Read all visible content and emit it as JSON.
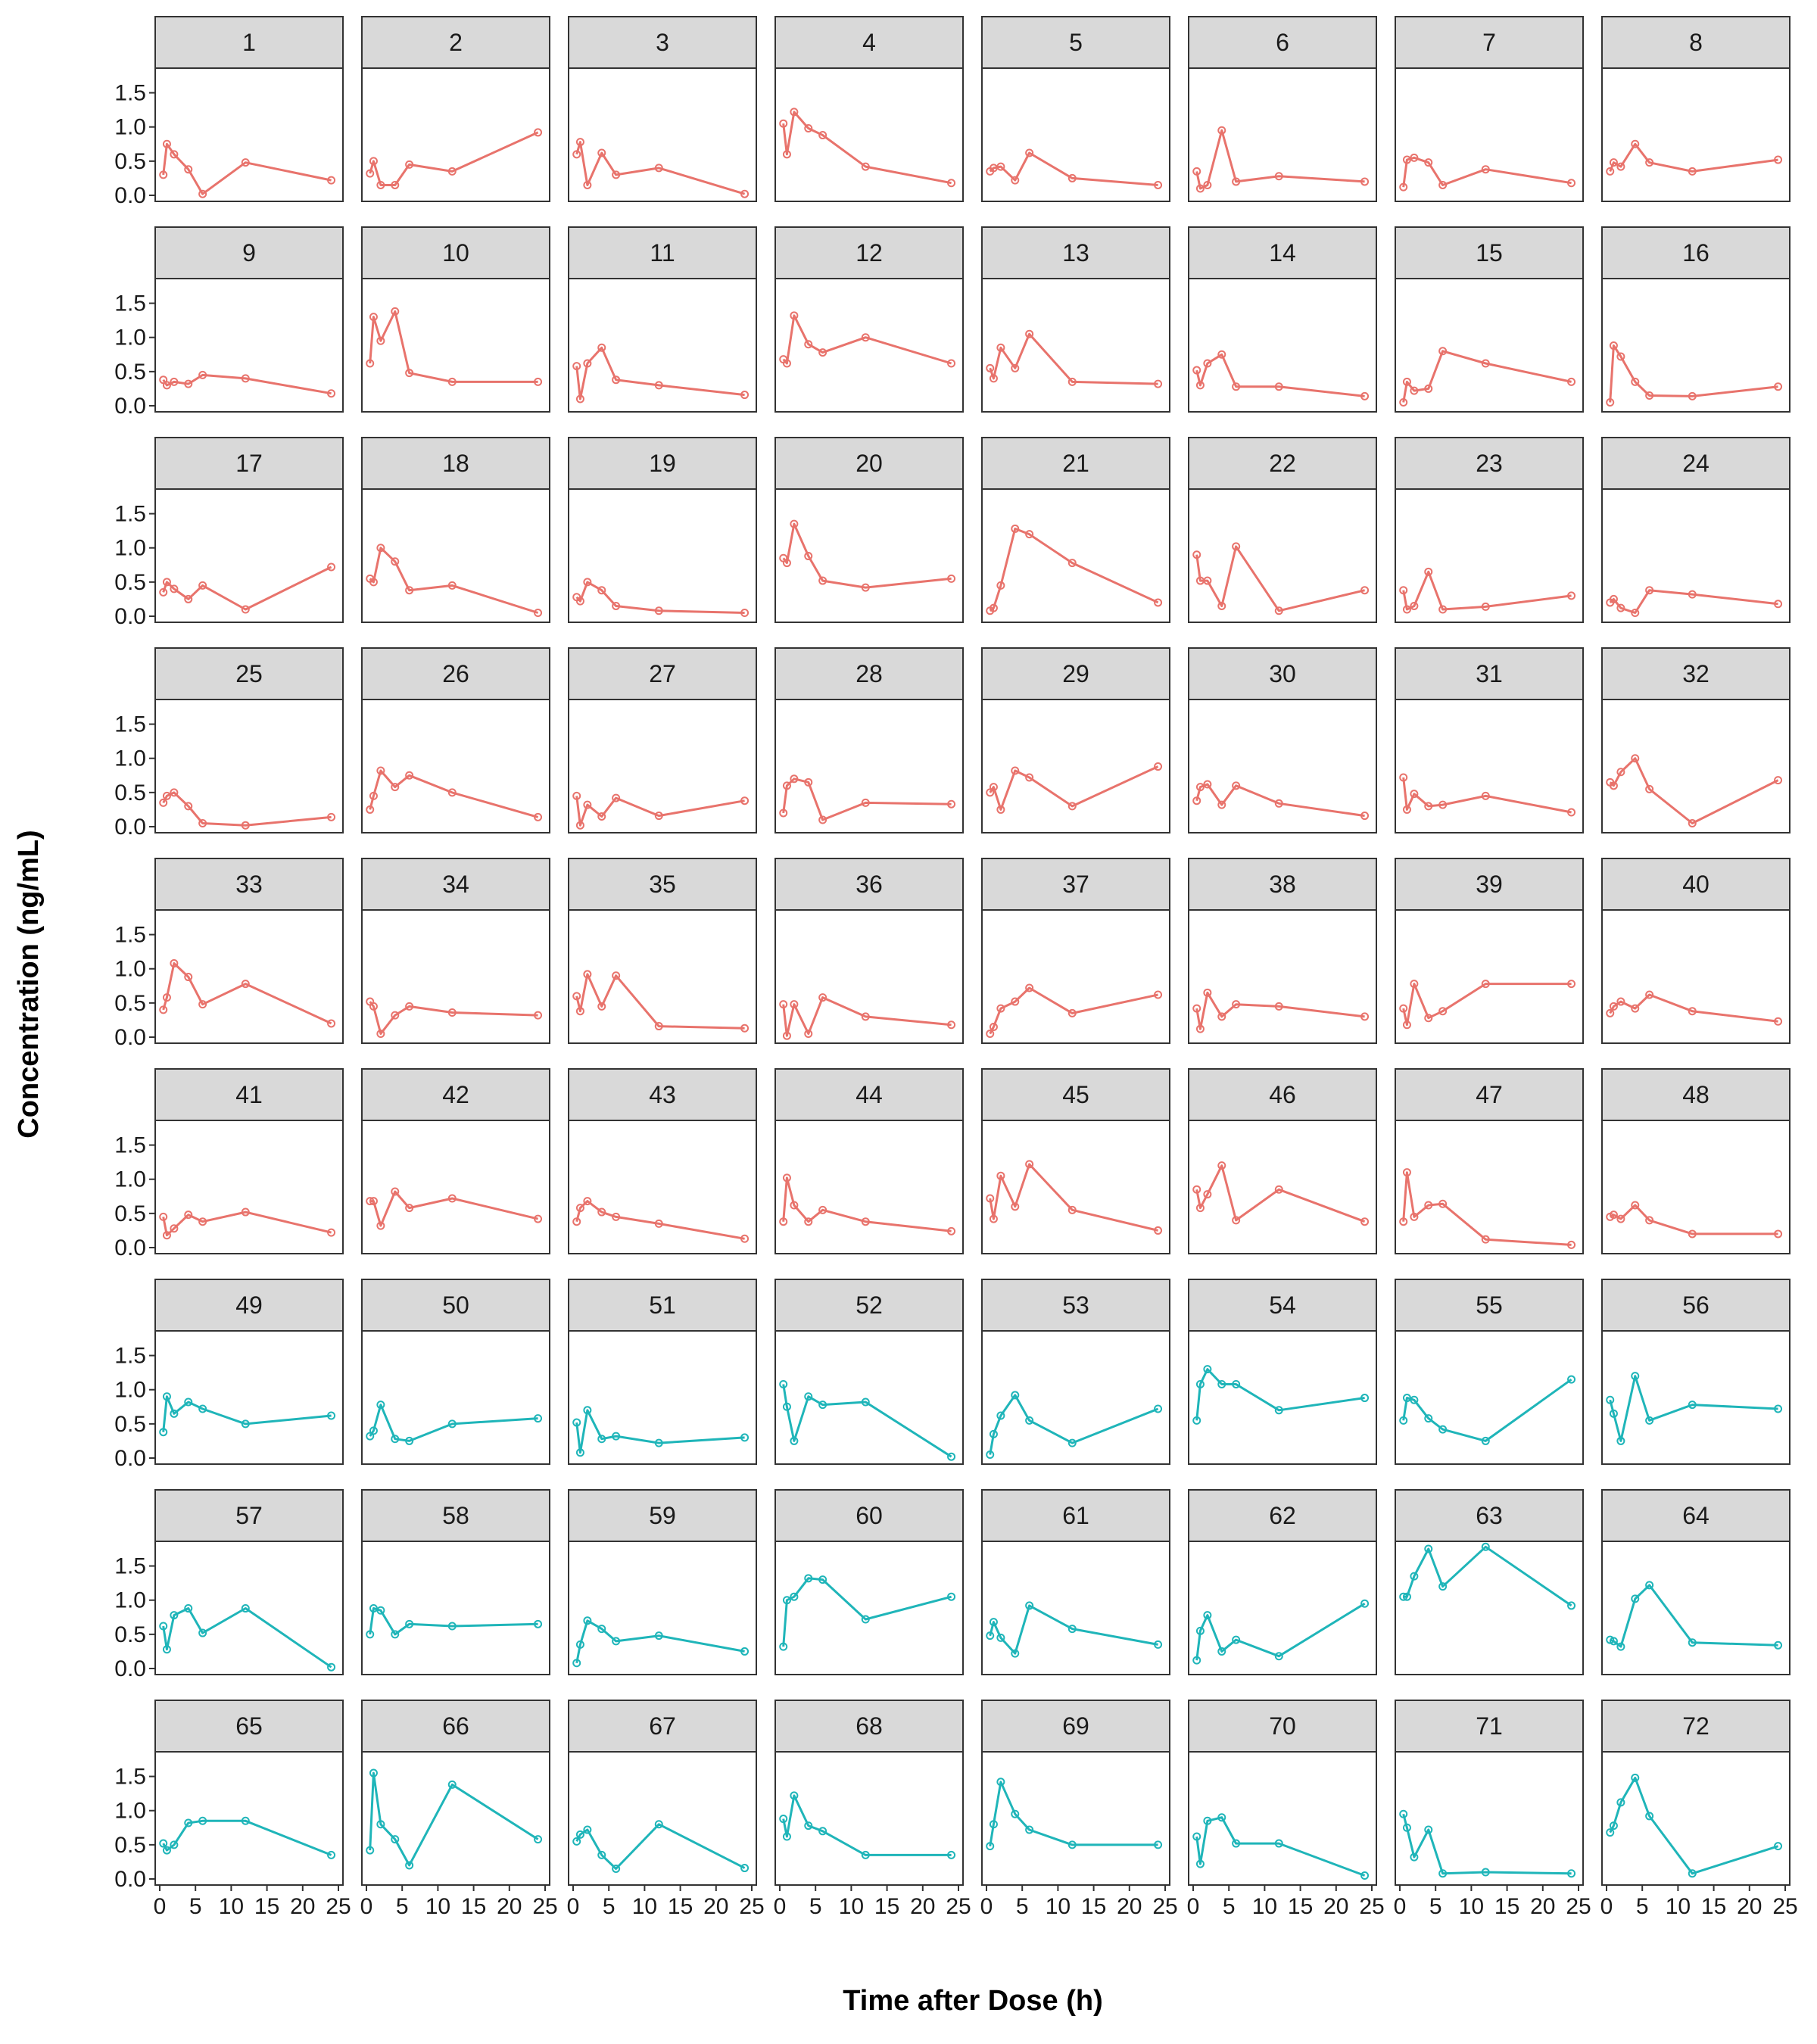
{
  "chart_data": {
    "type": "line",
    "facet": "small-multiples",
    "xlabel": "Time after Dose (h)",
    "ylabel": "Concentration (ng/mL)",
    "xlim": [
      0,
      25
    ],
    "ylim": [
      0,
      1.75
    ],
    "x_ticks": [
      0,
      5,
      10,
      15,
      20,
      25
    ],
    "x_tick_labels": [
      "0",
      "5",
      "10",
      "15",
      "20",
      "25"
    ],
    "y_ticks": [
      0,
      0.5,
      1.0,
      1.5
    ],
    "y_tick_labels": [
      "0.0",
      "0.5",
      "1.0",
      "1.5"
    ],
    "colors": {
      "group_a": "#e8736c",
      "group_b": "#1fb5b9"
    },
    "times": [
      0.5,
      1,
      2,
      4,
      6,
      12,
      24
    ],
    "subjects": [
      {
        "id": "1",
        "group": "a",
        "values": [
          0.3,
          0.75,
          0.6,
          0.38,
          0.02,
          0.48,
          0.22
        ]
      },
      {
        "id": "2",
        "group": "a",
        "values": [
          0.32,
          0.5,
          0.15,
          0.15,
          0.45,
          0.35,
          0.92
        ]
      },
      {
        "id": "3",
        "group": "a",
        "values": [
          0.6,
          0.78,
          0.15,
          0.62,
          0.3,
          0.4,
          0.02
        ]
      },
      {
        "id": "4",
        "group": "a",
        "values": [
          1.05,
          0.6,
          1.22,
          0.98,
          0.88,
          0.42,
          0.18
        ]
      },
      {
        "id": "5",
        "group": "a",
        "values": [
          0.35,
          0.4,
          0.42,
          0.22,
          0.62,
          0.25,
          0.15
        ]
      },
      {
        "id": "6",
        "group": "a",
        "values": [
          0.35,
          0.1,
          0.15,
          0.95,
          0.2,
          0.28,
          0.2
        ]
      },
      {
        "id": "7",
        "group": "a",
        "values": [
          0.12,
          0.52,
          0.55,
          0.48,
          0.15,
          0.38,
          0.18
        ]
      },
      {
        "id": "8",
        "group": "a",
        "values": [
          0.35,
          0.48,
          0.42,
          0.75,
          0.48,
          0.35,
          0.52
        ]
      },
      {
        "id": "9",
        "group": "a",
        "values": [
          0.38,
          0.3,
          0.35,
          0.32,
          0.45,
          0.4,
          0.18
        ]
      },
      {
        "id": "10",
        "group": "a",
        "values": [
          0.62,
          1.3,
          0.95,
          1.38,
          0.48,
          0.35,
          0.35
        ]
      },
      {
        "id": "11",
        "group": "a",
        "values": [
          0.58,
          0.1,
          0.62,
          0.85,
          0.38,
          0.3,
          0.16
        ]
      },
      {
        "id": "12",
        "group": "a",
        "values": [
          0.68,
          0.62,
          1.32,
          0.9,
          0.78,
          1.0,
          0.62
        ]
      },
      {
        "id": "13",
        "group": "a",
        "values": [
          0.55,
          0.4,
          0.85,
          0.55,
          1.05,
          0.35,
          0.32
        ]
      },
      {
        "id": "14",
        "group": "a",
        "values": [
          0.52,
          0.3,
          0.62,
          0.75,
          0.28,
          0.28,
          0.14
        ]
      },
      {
        "id": "15",
        "group": "a",
        "values": [
          0.05,
          0.35,
          0.22,
          0.25,
          0.8,
          0.62,
          0.35
        ]
      },
      {
        "id": "16",
        "group": "a",
        "values": [
          0.05,
          0.88,
          0.72,
          0.35,
          0.15,
          0.14,
          0.28
        ]
      },
      {
        "id": "17",
        "group": "a",
        "values": [
          0.35,
          0.5,
          0.4,
          0.25,
          0.45,
          0.1,
          0.72
        ]
      },
      {
        "id": "18",
        "group": "a",
        "values": [
          0.55,
          0.5,
          1.0,
          0.8,
          0.38,
          0.45,
          0.05
        ]
      },
      {
        "id": "19",
        "group": "a",
        "values": [
          0.28,
          0.22,
          0.5,
          0.38,
          0.15,
          0.08,
          0.05
        ]
      },
      {
        "id": "20",
        "group": "a",
        "values": [
          0.85,
          0.78,
          1.35,
          0.88,
          0.52,
          0.42,
          0.55
        ]
      },
      {
        "id": "21",
        "group": "a",
        "values": [
          0.08,
          0.12,
          0.45,
          1.28,
          1.2,
          0.78,
          0.2
        ]
      },
      {
        "id": "22",
        "group": "a",
        "values": [
          0.9,
          0.52,
          0.52,
          0.15,
          1.02,
          0.08,
          0.38
        ]
      },
      {
        "id": "23",
        "group": "a",
        "values": [
          0.38,
          0.1,
          0.15,
          0.65,
          0.1,
          0.14,
          0.3
        ]
      },
      {
        "id": "24",
        "group": "a",
        "values": [
          0.2,
          0.25,
          0.12,
          0.05,
          0.38,
          0.32,
          0.18
        ]
      },
      {
        "id": "25",
        "group": "a",
        "values": [
          0.35,
          0.45,
          0.5,
          0.3,
          0.05,
          0.02,
          0.14
        ]
      },
      {
        "id": "26",
        "group": "a",
        "values": [
          0.25,
          0.45,
          0.82,
          0.58,
          0.75,
          0.5,
          0.14
        ]
      },
      {
        "id": "27",
        "group": "a",
        "values": [
          0.45,
          0.02,
          0.32,
          0.15,
          0.42,
          0.16,
          0.38
        ]
      },
      {
        "id": "28",
        "group": "a",
        "values": [
          0.2,
          0.6,
          0.7,
          0.65,
          0.1,
          0.35,
          0.33
        ]
      },
      {
        "id": "29",
        "group": "a",
        "values": [
          0.5,
          0.58,
          0.25,
          0.82,
          0.72,
          0.3,
          0.88
        ]
      },
      {
        "id": "30",
        "group": "a",
        "values": [
          0.38,
          0.58,
          0.62,
          0.32,
          0.6,
          0.34,
          0.16
        ]
      },
      {
        "id": "31",
        "group": "a",
        "values": [
          0.72,
          0.25,
          0.48,
          0.3,
          0.32,
          0.45,
          0.21
        ]
      },
      {
        "id": "32",
        "group": "a",
        "values": [
          0.65,
          0.6,
          0.8,
          1.0,
          0.55,
          0.05,
          0.68
        ]
      },
      {
        "id": "33",
        "group": "a",
        "values": [
          0.4,
          0.58,
          1.08,
          0.88,
          0.48,
          0.78,
          0.2
        ]
      },
      {
        "id": "34",
        "group": "a",
        "values": [
          0.52,
          0.45,
          0.05,
          0.32,
          0.45,
          0.36,
          0.32
        ]
      },
      {
        "id": "35",
        "group": "a",
        "values": [
          0.6,
          0.38,
          0.92,
          0.45,
          0.9,
          0.16,
          0.13
        ]
      },
      {
        "id": "36",
        "group": "a",
        "values": [
          0.48,
          0.02,
          0.48,
          0.05,
          0.58,
          0.3,
          0.18
        ]
      },
      {
        "id": "37",
        "group": "a",
        "values": [
          0.05,
          0.15,
          0.42,
          0.52,
          0.72,
          0.35,
          0.62
        ]
      },
      {
        "id": "38",
        "group": "a",
        "values": [
          0.42,
          0.12,
          0.65,
          0.3,
          0.48,
          0.45,
          0.3
        ]
      },
      {
        "id": "39",
        "group": "a",
        "values": [
          0.42,
          0.18,
          0.78,
          0.28,
          0.38,
          0.78,
          0.78
        ]
      },
      {
        "id": "40",
        "group": "a",
        "values": [
          0.35,
          0.45,
          0.52,
          0.42,
          0.62,
          0.38,
          0.23
        ]
      },
      {
        "id": "41",
        "group": "a",
        "values": [
          0.45,
          0.18,
          0.28,
          0.48,
          0.38,
          0.52,
          0.22
        ]
      },
      {
        "id": "42",
        "group": "a",
        "values": [
          0.68,
          0.68,
          0.32,
          0.82,
          0.58,
          0.72,
          0.42
        ]
      },
      {
        "id": "43",
        "group": "a",
        "values": [
          0.38,
          0.58,
          0.68,
          0.52,
          0.45,
          0.35,
          0.13
        ]
      },
      {
        "id": "44",
        "group": "a",
        "values": [
          0.38,
          1.02,
          0.62,
          0.38,
          0.55,
          0.38,
          0.24
        ]
      },
      {
        "id": "45",
        "group": "a",
        "values": [
          0.72,
          0.42,
          1.05,
          0.6,
          1.22,
          0.55,
          0.25
        ]
      },
      {
        "id": "46",
        "group": "a",
        "values": [
          0.85,
          0.58,
          0.78,
          1.2,
          0.4,
          0.85,
          0.38
        ]
      },
      {
        "id": "47",
        "group": "a",
        "values": [
          0.38,
          1.1,
          0.45,
          0.62,
          0.64,
          0.12,
          0.04
        ]
      },
      {
        "id": "48",
        "group": "a",
        "values": [
          0.45,
          0.48,
          0.42,
          0.62,
          0.4,
          0.2,
          0.2
        ]
      },
      {
        "id": "49",
        "group": "b",
        "values": [
          0.38,
          0.9,
          0.65,
          0.82,
          0.72,
          0.5,
          0.62
        ]
      },
      {
        "id": "50",
        "group": "b",
        "values": [
          0.32,
          0.4,
          0.78,
          0.28,
          0.25,
          0.5,
          0.58
        ]
      },
      {
        "id": "51",
        "group": "b",
        "values": [
          0.52,
          0.08,
          0.7,
          0.28,
          0.32,
          0.22,
          0.3
        ]
      },
      {
        "id": "52",
        "group": "b",
        "values": [
          1.08,
          0.75,
          0.25,
          0.9,
          0.78,
          0.82,
          0.02
        ]
      },
      {
        "id": "53",
        "group": "b",
        "values": [
          0.05,
          0.35,
          0.62,
          0.92,
          0.55,
          0.22,
          0.72
        ]
      },
      {
        "id": "54",
        "group": "b",
        "values": [
          0.55,
          1.08,
          1.3,
          1.08,
          1.08,
          0.7,
          0.88
        ]
      },
      {
        "id": "55",
        "group": "b",
        "values": [
          0.55,
          0.88,
          0.85,
          0.58,
          0.42,
          0.25,
          1.15
        ]
      },
      {
        "id": "56",
        "group": "b",
        "values": [
          0.85,
          0.65,
          0.25,
          1.2,
          0.55,
          0.78,
          0.72
        ]
      },
      {
        "id": "57",
        "group": "b",
        "values": [
          0.62,
          0.28,
          0.78,
          0.88,
          0.52,
          0.88,
          0.02
        ]
      },
      {
        "id": "58",
        "group": "b",
        "values": [
          0.5,
          0.88,
          0.85,
          0.5,
          0.65,
          0.62,
          0.65
        ]
      },
      {
        "id": "59",
        "group": "b",
        "values": [
          0.08,
          0.35,
          0.7,
          0.58,
          0.4,
          0.48,
          0.25
        ]
      },
      {
        "id": "60",
        "group": "b",
        "values": [
          0.32,
          1.0,
          1.05,
          1.32,
          1.3,
          0.72,
          1.05
        ]
      },
      {
        "id": "61",
        "group": "b",
        "values": [
          0.48,
          0.68,
          0.45,
          0.22,
          0.92,
          0.58,
          0.35
        ]
      },
      {
        "id": "62",
        "group": "b",
        "values": [
          0.12,
          0.55,
          0.78,
          0.25,
          0.42,
          0.18,
          0.95
        ]
      },
      {
        "id": "63",
        "group": "b",
        "values": [
          1.05,
          1.05,
          1.35,
          1.75,
          1.2,
          1.78,
          0.92
        ]
      },
      {
        "id": "64",
        "group": "b",
        "values": [
          0.42,
          0.4,
          0.32,
          1.02,
          1.22,
          0.38,
          0.34
        ]
      },
      {
        "id": "65",
        "group": "b",
        "values": [
          0.52,
          0.42,
          0.5,
          0.82,
          0.85,
          0.85,
          0.35
        ]
      },
      {
        "id": "66",
        "group": "b",
        "values": [
          0.42,
          1.55,
          0.8,
          0.58,
          0.2,
          1.38,
          0.58
        ]
      },
      {
        "id": "67",
        "group": "b",
        "values": [
          0.55,
          0.65,
          0.72,
          0.35,
          0.15,
          0.8,
          0.16
        ]
      },
      {
        "id": "68",
        "group": "b",
        "values": [
          0.88,
          0.62,
          1.22,
          0.78,
          0.7,
          0.35,
          0.35
        ]
      },
      {
        "id": "69",
        "group": "b",
        "values": [
          0.48,
          0.8,
          1.42,
          0.95,
          0.72,
          0.5,
          0.5
        ]
      },
      {
        "id": "70",
        "group": "b",
        "values": [
          0.62,
          0.22,
          0.85,
          0.9,
          0.52,
          0.52,
          0.05
        ]
      },
      {
        "id": "71",
        "group": "b",
        "values": [
          0.95,
          0.75,
          0.32,
          0.72,
          0.08,
          0.1,
          0.08
        ]
      },
      {
        "id": "72",
        "group": "b",
        "values": [
          0.68,
          0.78,
          1.12,
          1.48,
          0.92,
          0.08,
          0.48
        ]
      }
    ]
  }
}
